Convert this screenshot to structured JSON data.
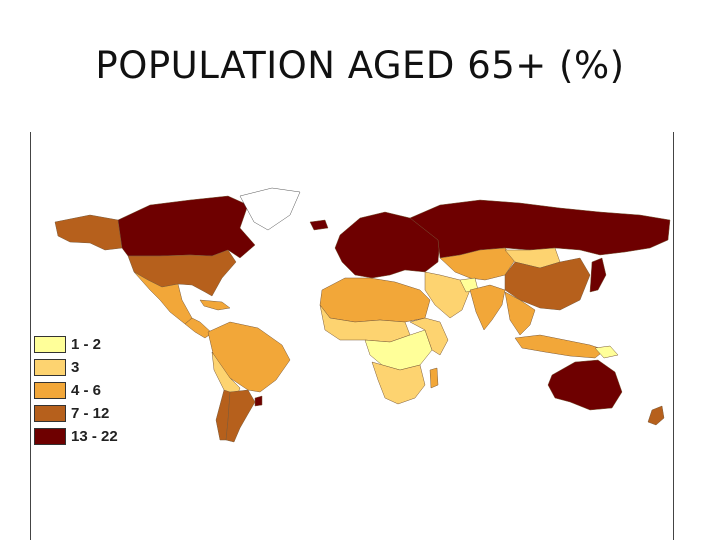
{
  "title": "POPULATION AGED 65+ (%)",
  "colors": {
    "c1": "#ffff99",
    "c2": "#fdd370",
    "c3": "#f2a739",
    "c4": "#b6601c",
    "c5": "#6e0000"
  },
  "legend": [
    {
      "label": "1 - 2",
      "color": "#ffff99"
    },
    {
      "label": "3",
      "color": "#fdd370"
    },
    {
      "label": "4 - 6",
      "color": "#f2a739"
    },
    {
      "label": "7 - 12",
      "color": "#b6601c"
    },
    {
      "label": "13 - 22",
      "color": "#6e0000"
    }
  ]
}
